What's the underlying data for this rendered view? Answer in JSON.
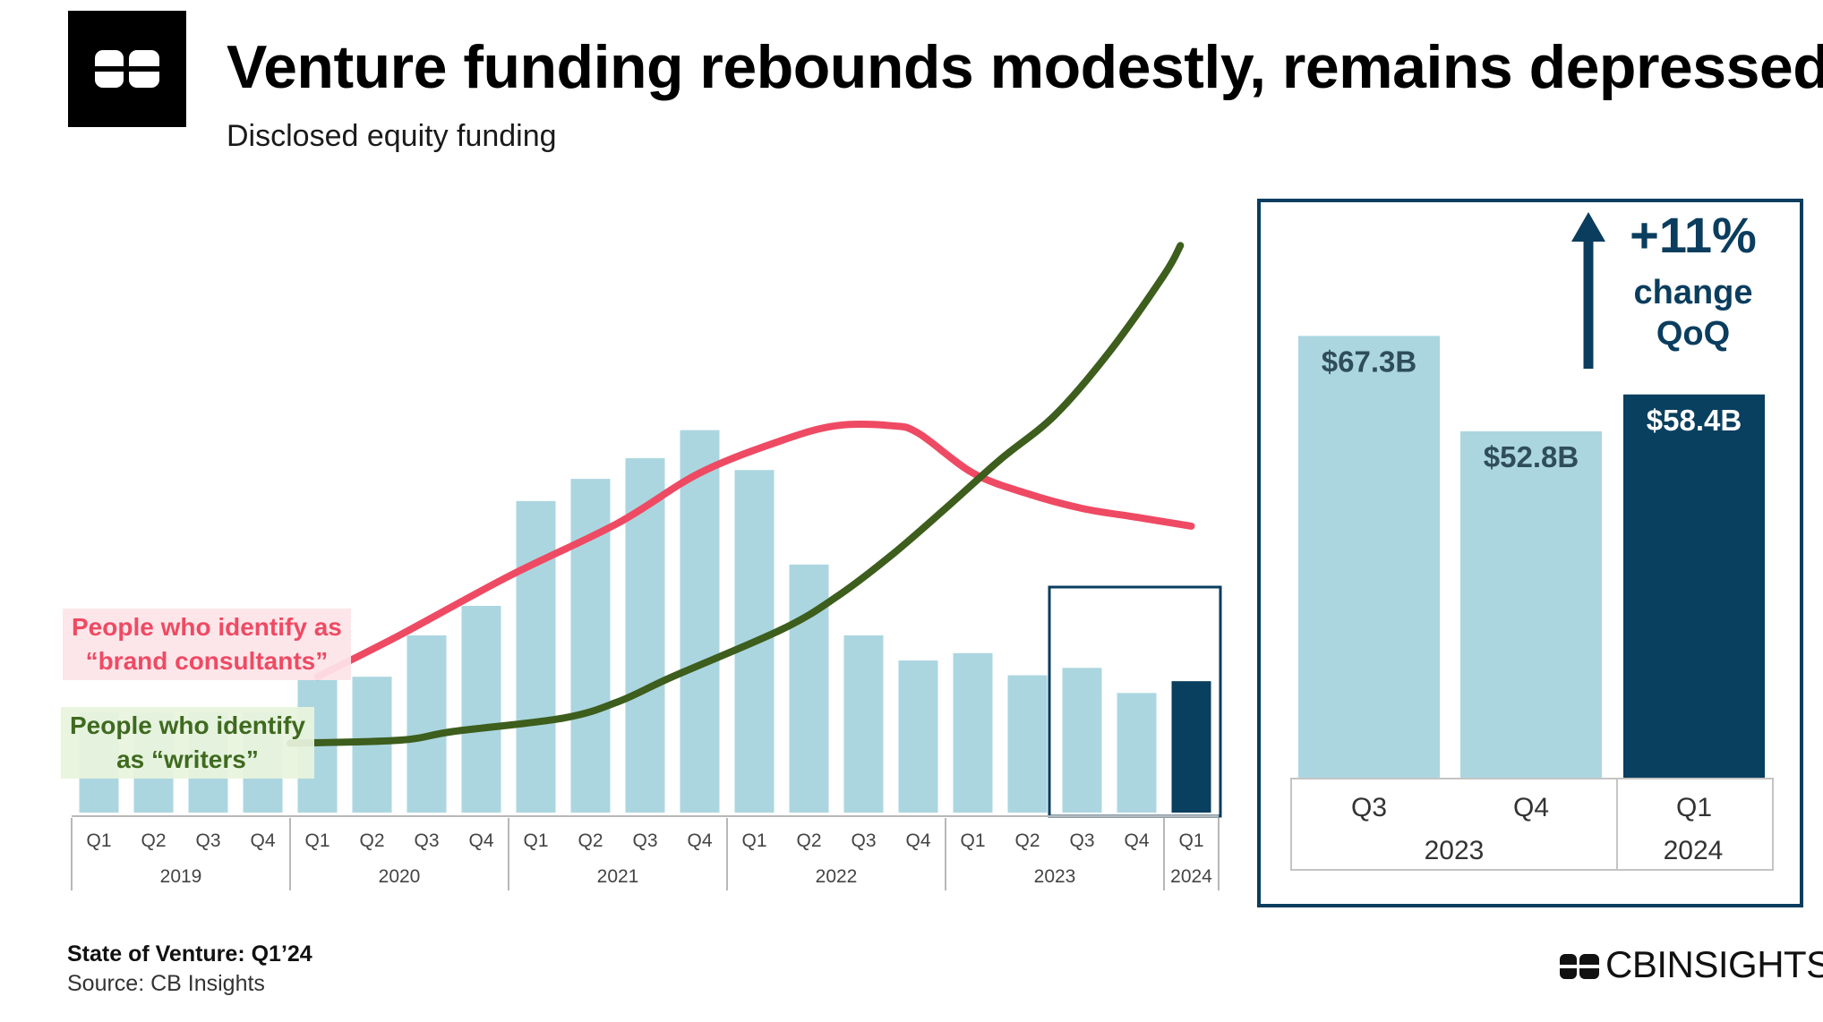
{
  "header": {
    "title": "Venture funding rebounds modestly, remains depressed",
    "subtitle": "Disclosed equity funding"
  },
  "logo": {
    "icon": "cb-insights-logo-icon"
  },
  "annotations": {
    "brand_line1": "People who identify as",
    "brand_line2": "“brand consultants”",
    "writers_line1": "People who identify",
    "writers_line2": "as “writers”"
  },
  "footer": {
    "report": "State of Venture: Q1’24",
    "source": "Source: CB Insights",
    "brand": "CBINSIGHTS"
  },
  "colors": {
    "bar_light": "#abd6e0",
    "bar_dark": "#093f5f",
    "frame": "#0a3d5e",
    "brand_consultants_line": "#ef4a63",
    "writers_line": "#3d5e1c",
    "axis_text": "#444444"
  },
  "chart_data": [
    {
      "type": "bar",
      "categories": [
        "Q1",
        "Q2",
        "Q3",
        "Q4",
        "Q1",
        "Q2",
        "Q3",
        "Q4",
        "Q1",
        "Q2",
        "Q3",
        "Q4",
        "Q1",
        "Q2",
        "Q3",
        "Q4",
        "Q1",
        "Q2",
        "Q3",
        "Q4",
        "Q1"
      ],
      "years": [
        "2019",
        "2020",
        "2021",
        "2022",
        "2023",
        "2024"
      ],
      "year_spans": [
        4,
        4,
        4,
        4,
        4,
        1
      ],
      "series": [
        {
          "values": [
            68,
            68,
            68,
            68,
            90,
            92,
            120,
            140,
            211,
            226,
            240,
            259,
            232,
            168,
            120,
            103,
            108,
            93,
            98,
            81,
            89
          ],
          "highlight_last": true
        }
      ],
      "highlight_box_range": [
        18,
        20
      ],
      "overlay_lines": [
        {
          "label": "People who identify as “brand consultants”",
          "trend": [
            [
              4.5,
              92
            ],
            [
              6,
              120
            ],
            [
              8,
              160
            ],
            [
              10,
              196
            ],
            [
              11.5,
              230
            ],
            [
              13,
              252
            ],
            [
              14,
              262
            ],
            [
              15,
              262
            ],
            [
              15.5,
              257
            ],
            [
              16.5,
              230
            ],
            [
              17.5,
              216
            ],
            [
              18.5,
              206
            ],
            [
              19.5,
              200
            ],
            [
              20.5,
              194
            ]
          ]
        },
        {
          "label": "People who identify as “writers”",
          "trend": [
            [
              4,
              47
            ],
            [
              6,
              49
            ],
            [
              7,
              55
            ],
            [
              9,
              64
            ],
            [
              10,
              75
            ],
            [
              11,
              92
            ],
            [
              13,
              124
            ],
            [
              14,
              146
            ],
            [
              15,
              174
            ],
            [
              16,
              206
            ],
            [
              17,
              239
            ],
            [
              18,
              269
            ],
            [
              19,
              312
            ],
            [
              20,
              364
            ],
            [
              20.3,
              384
            ]
          ]
        }
      ]
    },
    {
      "type": "bar",
      "categories": [
        "Q3",
        "Q4",
        "Q1"
      ],
      "years": [
        "2023",
        "2024"
      ],
      "year_spans": [
        2,
        1
      ],
      "values": [
        67.3,
        52.8,
        58.4
      ],
      "data_labels": [
        "$67.3B",
        "$52.8B",
        "$58.4B"
      ],
      "highlight_last": true,
      "change_pct": "+11%",
      "change_line1": "change",
      "change_line2": "QoQ",
      "change_icon": "arrow-up-icon"
    }
  ]
}
